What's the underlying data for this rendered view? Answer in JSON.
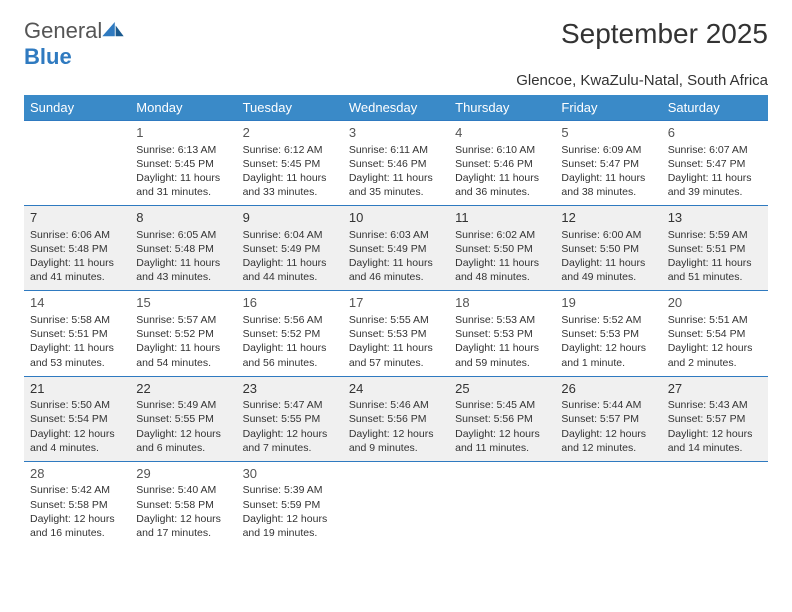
{
  "brand": {
    "word1": "General",
    "word2": "Blue"
  },
  "title": "September 2025",
  "subtitle": "Glencoe, KwaZulu-Natal, South Africa",
  "colors": {
    "header_bg": "#3a8ac8",
    "header_text": "#ffffff",
    "row_border": "#2f7ac0",
    "shaded_bg": "#f0f0f0",
    "text": "#333333",
    "logo_blue": "#2f7ac0"
  },
  "weekdays": [
    "Sunday",
    "Monday",
    "Tuesday",
    "Wednesday",
    "Thursday",
    "Friday",
    "Saturday"
  ],
  "weeks": [
    {
      "shaded": false,
      "days": [
        null,
        {
          "n": "1",
          "sr": "6:13 AM",
          "ss": "5:45 PM",
          "dl": "11 hours and 31 minutes."
        },
        {
          "n": "2",
          "sr": "6:12 AM",
          "ss": "5:45 PM",
          "dl": "11 hours and 33 minutes."
        },
        {
          "n": "3",
          "sr": "6:11 AM",
          "ss": "5:46 PM",
          "dl": "11 hours and 35 minutes."
        },
        {
          "n": "4",
          "sr": "6:10 AM",
          "ss": "5:46 PM",
          "dl": "11 hours and 36 minutes."
        },
        {
          "n": "5",
          "sr": "6:09 AM",
          "ss": "5:47 PM",
          "dl": "11 hours and 38 minutes."
        },
        {
          "n": "6",
          "sr": "6:07 AM",
          "ss": "5:47 PM",
          "dl": "11 hours and 39 minutes."
        }
      ]
    },
    {
      "shaded": true,
      "days": [
        {
          "n": "7",
          "sr": "6:06 AM",
          "ss": "5:48 PM",
          "dl": "11 hours and 41 minutes."
        },
        {
          "n": "8",
          "sr": "6:05 AM",
          "ss": "5:48 PM",
          "dl": "11 hours and 43 minutes."
        },
        {
          "n": "9",
          "sr": "6:04 AM",
          "ss": "5:49 PM",
          "dl": "11 hours and 44 minutes."
        },
        {
          "n": "10",
          "sr": "6:03 AM",
          "ss": "5:49 PM",
          "dl": "11 hours and 46 minutes."
        },
        {
          "n": "11",
          "sr": "6:02 AM",
          "ss": "5:50 PM",
          "dl": "11 hours and 48 minutes."
        },
        {
          "n": "12",
          "sr": "6:00 AM",
          "ss": "5:50 PM",
          "dl": "11 hours and 49 minutes."
        },
        {
          "n": "13",
          "sr": "5:59 AM",
          "ss": "5:51 PM",
          "dl": "11 hours and 51 minutes."
        }
      ]
    },
    {
      "shaded": false,
      "days": [
        {
          "n": "14",
          "sr": "5:58 AM",
          "ss": "5:51 PM",
          "dl": "11 hours and 53 minutes."
        },
        {
          "n": "15",
          "sr": "5:57 AM",
          "ss": "5:52 PM",
          "dl": "11 hours and 54 minutes."
        },
        {
          "n": "16",
          "sr": "5:56 AM",
          "ss": "5:52 PM",
          "dl": "11 hours and 56 minutes."
        },
        {
          "n": "17",
          "sr": "5:55 AM",
          "ss": "5:53 PM",
          "dl": "11 hours and 57 minutes."
        },
        {
          "n": "18",
          "sr": "5:53 AM",
          "ss": "5:53 PM",
          "dl": "11 hours and 59 minutes."
        },
        {
          "n": "19",
          "sr": "5:52 AM",
          "ss": "5:53 PM",
          "dl": "12 hours and 1 minute."
        },
        {
          "n": "20",
          "sr": "5:51 AM",
          "ss": "5:54 PM",
          "dl": "12 hours and 2 minutes."
        }
      ]
    },
    {
      "shaded": true,
      "days": [
        {
          "n": "21",
          "sr": "5:50 AM",
          "ss": "5:54 PM",
          "dl": "12 hours and 4 minutes."
        },
        {
          "n": "22",
          "sr": "5:49 AM",
          "ss": "5:55 PM",
          "dl": "12 hours and 6 minutes."
        },
        {
          "n": "23",
          "sr": "5:47 AM",
          "ss": "5:55 PM",
          "dl": "12 hours and 7 minutes."
        },
        {
          "n": "24",
          "sr": "5:46 AM",
          "ss": "5:56 PM",
          "dl": "12 hours and 9 minutes."
        },
        {
          "n": "25",
          "sr": "5:45 AM",
          "ss": "5:56 PM",
          "dl": "12 hours and 11 minutes."
        },
        {
          "n": "26",
          "sr": "5:44 AM",
          "ss": "5:57 PM",
          "dl": "12 hours and 12 minutes."
        },
        {
          "n": "27",
          "sr": "5:43 AM",
          "ss": "5:57 PM",
          "dl": "12 hours and 14 minutes."
        }
      ]
    },
    {
      "shaded": false,
      "days": [
        {
          "n": "28",
          "sr": "5:42 AM",
          "ss": "5:58 PM",
          "dl": "12 hours and 16 minutes."
        },
        {
          "n": "29",
          "sr": "5:40 AM",
          "ss": "5:58 PM",
          "dl": "12 hours and 17 minutes."
        },
        {
          "n": "30",
          "sr": "5:39 AM",
          "ss": "5:59 PM",
          "dl": "12 hours and 19 minutes."
        },
        null,
        null,
        null,
        null
      ]
    }
  ],
  "labels": {
    "sunrise": "Sunrise: ",
    "sunset": "Sunset: ",
    "daylight": "Daylight: "
  }
}
